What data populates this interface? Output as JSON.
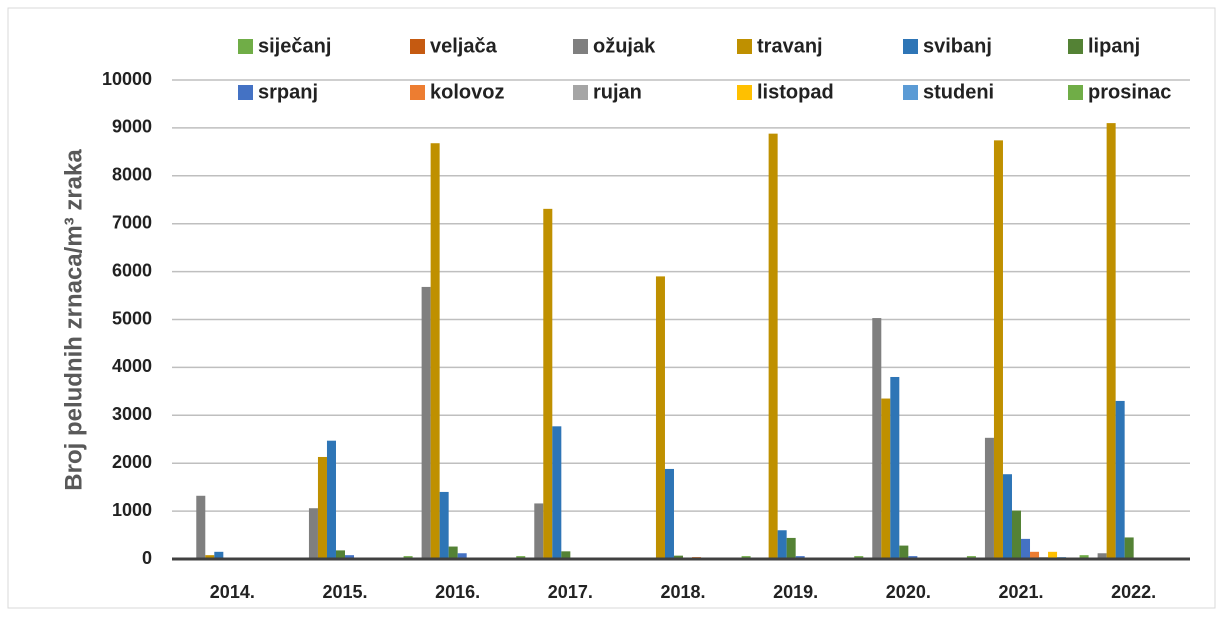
{
  "chart_data": {
    "type": "bar",
    "y_label": "Broj peludnih zrnaca/m³ zraka",
    "categories": [
      "2014.",
      "2015.",
      "2016.",
      "2017.",
      "2018.",
      "2019.",
      "2020.",
      "2021.",
      "2022."
    ],
    "series": [
      {
        "name": "siječanj",
        "color": "#70ad47",
        "values": [
          0,
          0,
          60,
          60,
          0,
          60,
          60,
          60,
          80
        ]
      },
      {
        "name": "veljača",
        "color": "#c55a11",
        "values": [
          0,
          0,
          0,
          0,
          0,
          0,
          0,
          0,
          0
        ]
      },
      {
        "name": "ožujak",
        "color": "#7f7f7f",
        "values": [
          1320,
          1060,
          5680,
          1160,
          0,
          0,
          5030,
          2530,
          120
        ]
      },
      {
        "name": "travanj",
        "color": "#bf9000",
        "values": [
          80,
          2130,
          8680,
          7310,
          5900,
          8880,
          3350,
          8740,
          9100
        ]
      },
      {
        "name": "svibanj",
        "color": "#2e75b6",
        "values": [
          150,
          2470,
          1400,
          2770,
          1880,
          600,
          3800,
          1770,
          3300
        ]
      },
      {
        "name": "lipanj",
        "color": "#548235",
        "values": [
          20,
          180,
          260,
          160,
          70,
          440,
          280,
          1010,
          450
        ]
      },
      {
        "name": "srpanj",
        "color": "#4472c4",
        "values": [
          0,
          80,
          120,
          0,
          0,
          60,
          60,
          420,
          0
        ]
      },
      {
        "name": "kolovoz",
        "color": "#ed7d31",
        "values": [
          0,
          20,
          20,
          0,
          40,
          0,
          0,
          150,
          0
        ]
      },
      {
        "name": "rujan",
        "color": "#a5a5a5",
        "values": [
          0,
          20,
          20,
          0,
          0,
          0,
          0,
          40,
          0
        ]
      },
      {
        "name": "listopad",
        "color": "#ffc000",
        "values": [
          0,
          0,
          0,
          0,
          0,
          0,
          0,
          150,
          0
        ]
      },
      {
        "name": "studeni",
        "color": "#5b9bd5",
        "values": [
          0,
          0,
          0,
          0,
          0,
          0,
          0,
          40,
          0
        ]
      },
      {
        "name": "prosinac",
        "color": "#70ad47",
        "values": [
          0,
          0,
          0,
          0,
          0,
          0,
          0,
          0,
          0
        ]
      }
    ],
    "ylim": [
      0,
      10000
    ],
    "yticks": [
      0,
      1000,
      2000,
      3000,
      4000,
      5000,
      6000,
      7000,
      8000,
      9000,
      10000
    ],
    "grid": true,
    "legend": "top"
  }
}
